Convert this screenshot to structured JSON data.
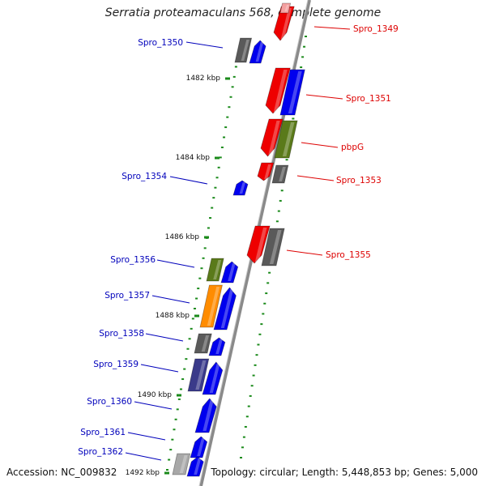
{
  "title": "Serratia proteamaculans 568, complete genome",
  "footer": {
    "accession": "Accession: NC_009832",
    "topology": "Topology: circular; Length: 5,448,853 bp; Genes: 5,000"
  },
  "colors": {
    "backbone": "#8a8a8a",
    "tick": "#1a8a1a",
    "forward_label": "#0000bb",
    "reverse_label": "#dd0000",
    "blue": "#0000ee",
    "red": "#ee0000",
    "gray": "#5a5a5a",
    "olive": "#5a7a1a",
    "orange": "#ff8c00",
    "purple": "#3a3a8a",
    "lightgray": "#a8a8a8",
    "pink": "#f4a0a0"
  },
  "kbp_labels": [
    "1482 kbp",
    "1484 kbp",
    "1486 kbp",
    "1488 kbp",
    "1490 kbp",
    "1492 kbp"
  ],
  "genes": [
    {
      "name": "Spro_1349",
      "strand": "reverse"
    },
    {
      "name": "Spro_1350",
      "strand": "forward"
    },
    {
      "name": "Spro_1351",
      "strand": "reverse"
    },
    {
      "name": "pbpG",
      "strand": "reverse"
    },
    {
      "name": "Spro_1353",
      "strand": "reverse"
    },
    {
      "name": "Spro_1354",
      "strand": "forward"
    },
    {
      "name": "Spro_1355",
      "strand": "reverse"
    },
    {
      "name": "Spro_1356",
      "strand": "forward"
    },
    {
      "name": "Spro_1357",
      "strand": "forward"
    },
    {
      "name": "Spro_1358",
      "strand": "forward"
    },
    {
      "name": "Spro_1359",
      "strand": "forward"
    },
    {
      "name": "Spro_1360",
      "strand": "forward"
    },
    {
      "name": "Spro_1361",
      "strand": "forward"
    },
    {
      "name": "Spro_1362",
      "strand": "forward"
    }
  ]
}
